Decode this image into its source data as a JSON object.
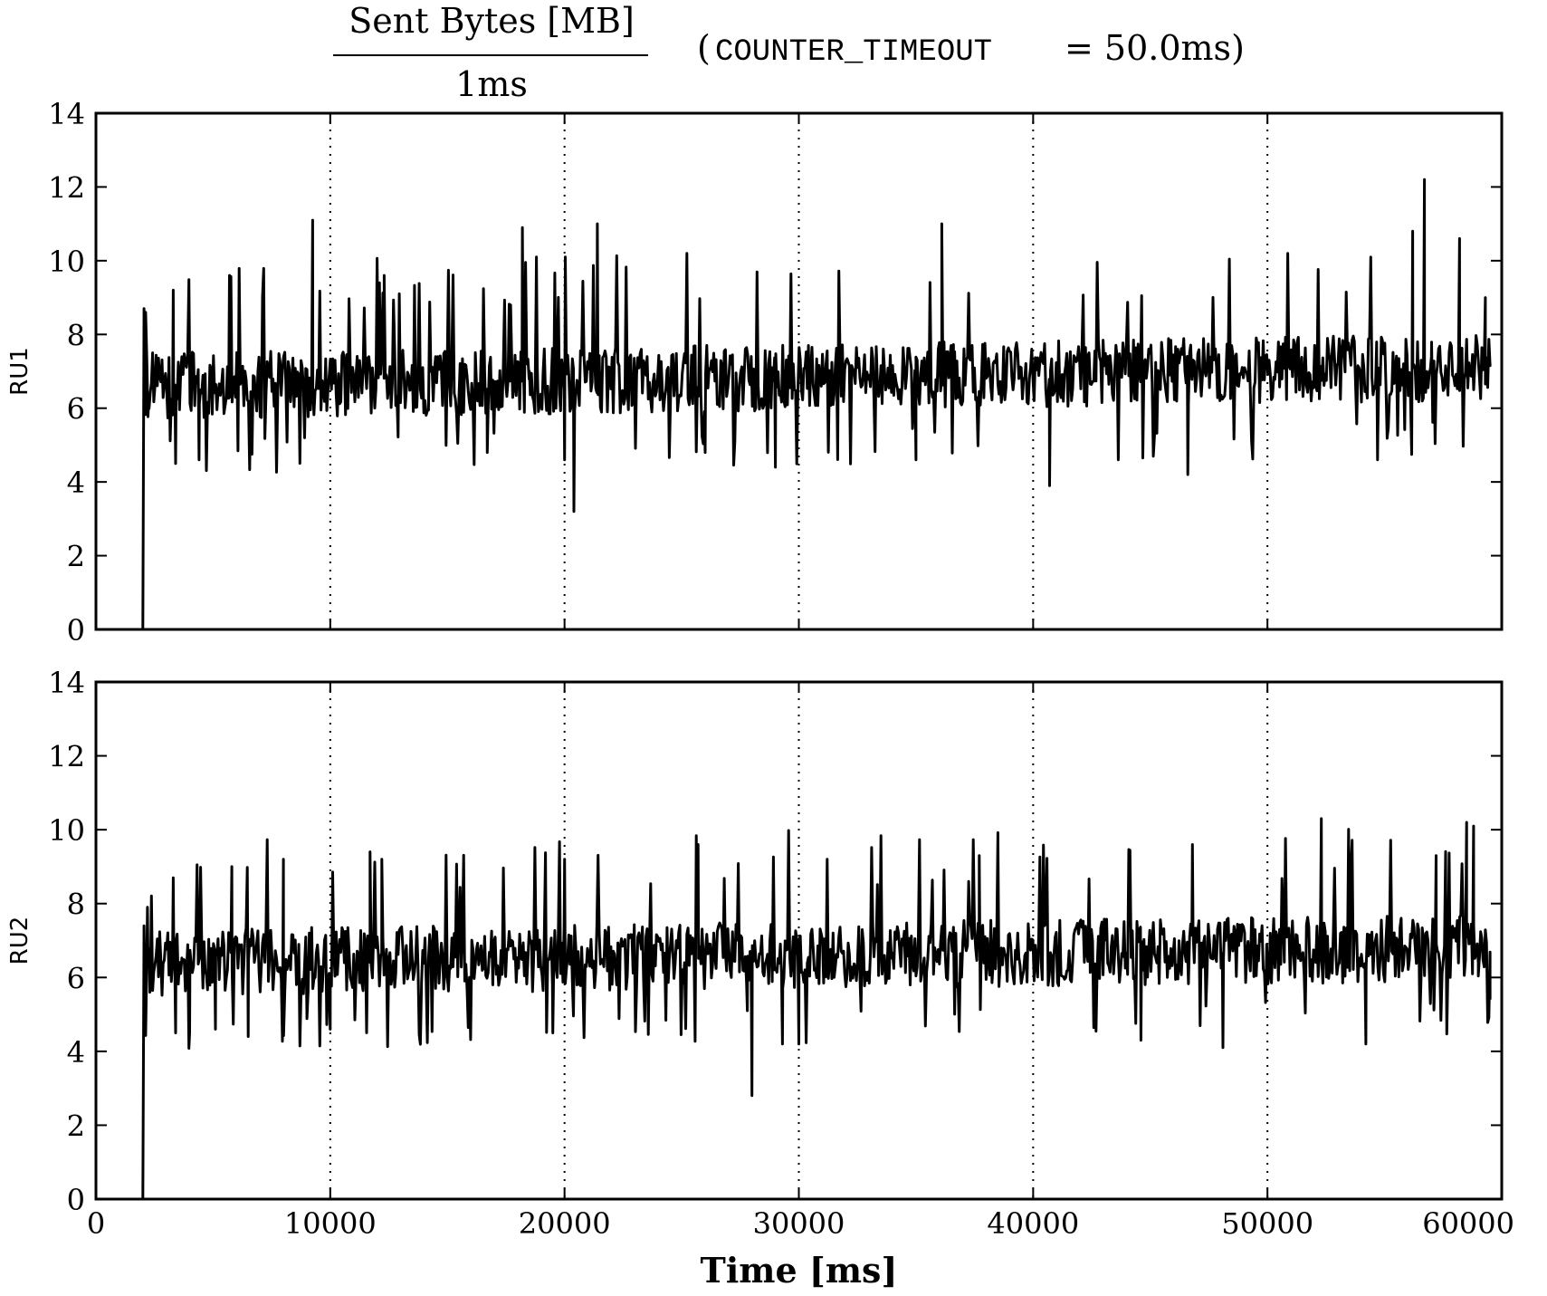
{
  "title": {
    "numerator": "Sent Bytes [MB]",
    "denominator": "1ms",
    "paren_open": "(",
    "param_name": "COUNTER_TIMEOUT",
    "param_value": "= 50.0ms)"
  },
  "chart_data": [
    {
      "type": "line",
      "ylabel": "RU1",
      "xlabel": "",
      "xlim": [
        0,
        60000
      ],
      "ylim": [
        0,
        14
      ],
      "xticks": [
        0,
        10000,
        20000,
        30000,
        40000,
        50000,
        60000
      ],
      "yticks": [
        0,
        2,
        4,
        6,
        8,
        10,
        12,
        14
      ],
      "vlines": [
        10000,
        20000,
        30000,
        40000,
        50000
      ],
      "grid": "vertical dotted at 10000 intervals",
      "series": [
        {
          "x_start": 2000,
          "x_end": 59500,
          "mean_trend": [
            6.6,
            7.1
          ],
          "noise_sd": 0.75,
          "points": [
            [
              2000,
              0
            ],
            [
              2050,
              8.7
            ],
            [
              2120,
              8.6
            ],
            [
              2250,
              6.2
            ],
            [
              2600,
              7.0
            ],
            [
              3300,
              9.2
            ],
            [
              3400,
              4.5
            ],
            [
              4400,
              4.6
            ],
            [
              5700,
              9.6
            ],
            [
              9250,
              11.1
            ],
            [
              12100,
              9.4
            ],
            [
              12300,
              9.6
            ],
            [
              16700,
              4.8
            ],
            [
              17700,
              8.8
            ],
            [
              18200,
              10.9
            ],
            [
              18500,
              7.0
            ],
            [
              18800,
              10.1
            ],
            [
              20000,
              4.6
            ],
            [
              20400,
              3.2
            ],
            [
              21400,
              11.0
            ],
            [
              26000,
              4.8
            ],
            [
              29000,
              4.4
            ],
            [
              35000,
              4.6
            ],
            [
              36100,
              11.0
            ],
            [
              36600,
              7.1
            ],
            [
              40700,
              3.9
            ],
            [
              46600,
              4.2
            ],
            [
              54700,
              4.6
            ],
            [
              56200,
              10.8
            ],
            [
              56700,
              12.2
            ],
            [
              57000,
              7.4
            ],
            [
              58200,
              10.6
            ],
            [
              59300,
              9.0
            ],
            [
              59500,
              7.2
            ]
          ]
        }
      ]
    },
    {
      "type": "line",
      "ylabel": "RU2",
      "xlabel": "Time [ms]",
      "xlim": [
        0,
        60000
      ],
      "ylim": [
        0,
        14
      ],
      "xticks": [
        0,
        10000,
        20000,
        30000,
        40000,
        50000,
        60000
      ],
      "yticks": [
        0,
        2,
        4,
        6,
        8,
        10,
        12,
        14
      ],
      "vlines": [
        10000,
        20000,
        30000,
        40000,
        50000
      ],
      "grid": "vertical dotted at 10000 intervals",
      "series": [
        {
          "x_start": 2000,
          "x_end": 59500,
          "mean_trend": [
            6.4,
            6.8
          ],
          "noise_sd": 0.75,
          "points": [
            [
              2000,
              0
            ],
            [
              2050,
              7.4
            ],
            [
              2200,
              7.9
            ],
            [
              2300,
              5.6
            ],
            [
              3300,
              8.7
            ],
            [
              3400,
              4.5
            ],
            [
              4000,
              4.5
            ],
            [
              5100,
              4.6
            ],
            [
              5800,
              9.0
            ],
            [
              6500,
              4.4
            ],
            [
              8000,
              9.2
            ],
            [
              10000,
              4.6
            ],
            [
              11700,
              9.4
            ],
            [
              12200,
              9.2
            ],
            [
              19500,
              4.5
            ],
            [
              20000,
              9.2
            ],
            [
              25700,
              9.6
            ],
            [
              27800,
              5.1
            ],
            [
              28000,
              2.8
            ],
            [
              29300,
              4.2
            ],
            [
              30000,
              4.2
            ],
            [
              37700,
              9.3
            ],
            [
              44600,
              4.3
            ],
            [
              46800,
              9.6
            ],
            [
              48100,
              4.1
            ],
            [
              52300,
              10.3
            ],
            [
              54200,
              4.2
            ],
            [
              57200,
              9.3
            ],
            [
              58500,
              10.2
            ],
            [
              58800,
              10.1
            ],
            [
              59000,
              6.4
            ],
            [
              59500,
              5.4
            ]
          ]
        }
      ]
    }
  ],
  "colors": {
    "line": "#000000",
    "axes": "#000000",
    "background": "#ffffff"
  }
}
